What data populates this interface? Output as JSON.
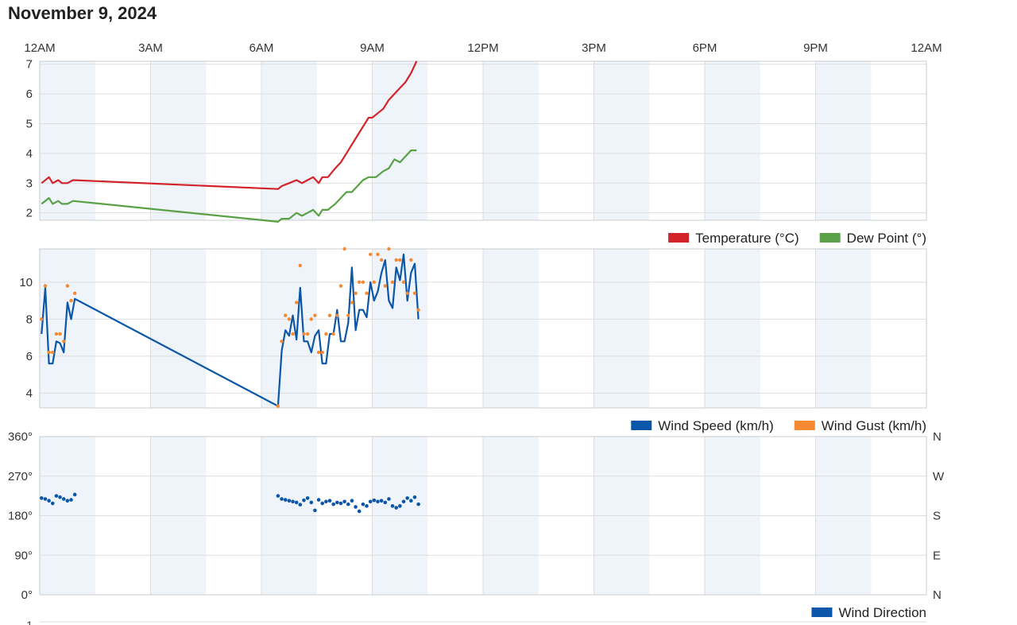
{
  "page": {
    "title": "November 9, 2024"
  },
  "time_axis": {
    "labels": [
      "12AM",
      "3AM",
      "6AM",
      "9AM",
      "12PM",
      "3PM",
      "6PM",
      "9PM",
      "12AM"
    ],
    "hours": [
      0,
      3,
      6,
      9,
      12,
      15,
      18,
      21,
      24
    ]
  },
  "colors": {
    "temperature": "#d2232a",
    "dew_point": "#5aa046",
    "wind_speed": "#0b56a8",
    "wind_gust": "#f58a33",
    "wind_direction": "#0b56a8",
    "band": "#eef4fa",
    "grid": "#dddddd"
  },
  "chart_data": [
    {
      "type": "line",
      "x_unit": "hour of day",
      "xlim": [
        0,
        24
      ],
      "ylim": [
        1.75,
        7.1
      ],
      "yticks": [
        2,
        3,
        4,
        5,
        6,
        7
      ],
      "legend_position": "bottom-right",
      "grid": true,
      "series": [
        {
          "name": "Temperature (°C)",
          "x": [
            0.05,
            0.25,
            0.35,
            0.5,
            0.6,
            0.75,
            0.9,
            6.45,
            6.55,
            6.75,
            6.95,
            7.1,
            7.25,
            7.4,
            7.55,
            7.65,
            7.8,
            8.0,
            8.15,
            8.3,
            8.45,
            8.6,
            8.75,
            8.9,
            9.0,
            9.1,
            9.3,
            9.45,
            9.6,
            9.75,
            9.9,
            10.05,
            10.2
          ],
          "y": [
            3.0,
            3.2,
            3.0,
            3.1,
            3.0,
            3.0,
            3.1,
            2.8,
            2.9,
            3.0,
            3.1,
            3.0,
            3.1,
            3.2,
            3.0,
            3.2,
            3.2,
            3.5,
            3.7,
            4.0,
            4.3,
            4.6,
            4.9,
            5.2,
            5.2,
            5.3,
            5.5,
            5.8,
            6.0,
            6.2,
            6.4,
            6.7,
            7.1
          ]
        },
        {
          "name": "Dew Point (°)",
          "x": [
            0.05,
            0.25,
            0.35,
            0.5,
            0.6,
            0.75,
            0.9,
            6.45,
            6.55,
            6.75,
            6.95,
            7.1,
            7.25,
            7.4,
            7.55,
            7.65,
            7.8,
            8.0,
            8.15,
            8.3,
            8.45,
            8.6,
            8.75,
            8.9,
            9.0,
            9.1,
            9.3,
            9.45,
            9.6,
            9.75,
            9.9,
            10.05,
            10.2
          ],
          "y": [
            2.3,
            2.5,
            2.3,
            2.4,
            2.3,
            2.3,
            2.4,
            1.7,
            1.8,
            1.8,
            2.0,
            1.9,
            2.0,
            2.1,
            1.9,
            2.1,
            2.1,
            2.3,
            2.5,
            2.7,
            2.7,
            2.9,
            3.1,
            3.2,
            3.2,
            3.2,
            3.4,
            3.5,
            3.8,
            3.7,
            3.9,
            4.1,
            4.1
          ]
        }
      ]
    },
    {
      "type": "line",
      "x_unit": "hour of day",
      "xlim": [
        0,
        24
      ],
      "ylim": [
        3.2,
        11.8
      ],
      "yticks": [
        4,
        6,
        8,
        10
      ],
      "legend_position": "bottom-right",
      "grid": true,
      "series": [
        {
          "name": "Wind Speed (km/h)",
          "x": [
            0.05,
            0.15,
            0.25,
            0.35,
            0.45,
            0.55,
            0.65,
            0.75,
            0.85,
            0.95,
            6.45,
            6.55,
            6.65,
            6.75,
            6.85,
            6.95,
            7.05,
            7.15,
            7.25,
            7.35,
            7.45,
            7.55,
            7.65,
            7.75,
            7.85,
            7.95,
            8.05,
            8.15,
            8.25,
            8.35,
            8.45,
            8.55,
            8.65,
            8.75,
            8.85,
            8.95,
            9.05,
            9.15,
            9.25,
            9.35,
            9.45,
            9.55,
            9.65,
            9.75,
            9.85,
            9.95,
            10.05,
            10.15,
            10.25
          ],
          "y": [
            7.2,
            9.7,
            5.6,
            5.6,
            6.8,
            6.7,
            6.2,
            8.9,
            8.0,
            9.1,
            3.3,
            6.3,
            7.4,
            7.1,
            8.2,
            6.9,
            9.7,
            6.8,
            6.8,
            6.2,
            7.1,
            7.4,
            5.6,
            5.6,
            7.2,
            7.2,
            8.5,
            6.8,
            6.8,
            7.8,
            10.8,
            7.4,
            8.5,
            8.5,
            8.1,
            10.0,
            9.0,
            9.5,
            10.5,
            11.2,
            9.0,
            8.6,
            10.8,
            10.1,
            11.5,
            9.0,
            10.5,
            11.0,
            8.0
          ]
        },
        {
          "name": "Wind Gust (km/h)",
          "type": "scatter",
          "x": [
            0.05,
            0.15,
            0.25,
            0.35,
            0.45,
            0.55,
            0.65,
            0.75,
            0.85,
            0.95,
            6.45,
            6.55,
            6.65,
            6.75,
            6.85,
            6.95,
            7.05,
            7.15,
            7.25,
            7.35,
            7.45,
            7.55,
            7.65,
            7.75,
            7.85,
            7.95,
            8.05,
            8.15,
            8.25,
            8.35,
            8.45,
            8.55,
            8.65,
            8.75,
            8.85,
            8.95,
            9.05,
            9.15,
            9.25,
            9.35,
            9.45,
            9.55,
            9.65,
            9.75,
            9.85,
            9.95,
            10.05,
            10.15,
            10.25
          ],
          "y": [
            8.0,
            9.8,
            6.2,
            6.2,
            7.2,
            7.2,
            6.8,
            9.8,
            9.0,
            9.4,
            3.3,
            6.8,
            8.2,
            8.0,
            7.2,
            8.9,
            10.9,
            7.2,
            7.2,
            8.0,
            8.2,
            6.2,
            6.2,
            7.2,
            8.2,
            7.2,
            8.2,
            9.8,
            11.8,
            8.2,
            8.9,
            9.4,
            10.0,
            10.0,
            9.4,
            11.5,
            10.0,
            11.5,
            11.2,
            9.8,
            11.8,
            10.0,
            11.2,
            11.2,
            10.0,
            9.4,
            11.2,
            9.4,
            8.5
          ]
        }
      ]
    },
    {
      "type": "scatter",
      "x_unit": "hour of day",
      "xlim": [
        0,
        24
      ],
      "ylim": [
        0,
        360
      ],
      "yticks": [
        0,
        90,
        180,
        270,
        360
      ],
      "ytick_labels": [
        "0°",
        "90°",
        "180°",
        "270°",
        "360°"
      ],
      "right_tick_labels": [
        "N",
        "E",
        "S",
        "W",
        "N"
      ],
      "legend_position": "bottom-right",
      "grid": true,
      "series": [
        {
          "name": "Wind Direction",
          "x": [
            0.05,
            0.15,
            0.25,
            0.35,
            0.45,
            0.55,
            0.65,
            0.75,
            0.85,
            0.95,
            6.45,
            6.55,
            6.65,
            6.75,
            6.85,
            6.95,
            7.05,
            7.15,
            7.25,
            7.35,
            7.45,
            7.55,
            7.65,
            7.75,
            7.85,
            7.95,
            8.05,
            8.15,
            8.25,
            8.35,
            8.45,
            8.55,
            8.65,
            8.75,
            8.85,
            8.95,
            9.05,
            9.15,
            9.25,
            9.35,
            9.45,
            9.55,
            9.65,
            9.75,
            9.85,
            9.95,
            10.05,
            10.15,
            10.25
          ],
          "y": [
            220,
            218,
            214,
            208,
            225,
            222,
            218,
            214,
            216,
            228,
            225,
            218,
            216,
            214,
            212,
            210,
            205,
            215,
            220,
            210,
            192,
            216,
            208,
            212,
            214,
            206,
            210,
            208,
            212,
            206,
            214,
            200,
            190,
            206,
            202,
            212,
            215,
            212,
            214,
            210,
            218,
            202,
            198,
            202,
            212,
            220,
            214,
            222,
            206
          ]
        }
      ]
    }
  ]
}
